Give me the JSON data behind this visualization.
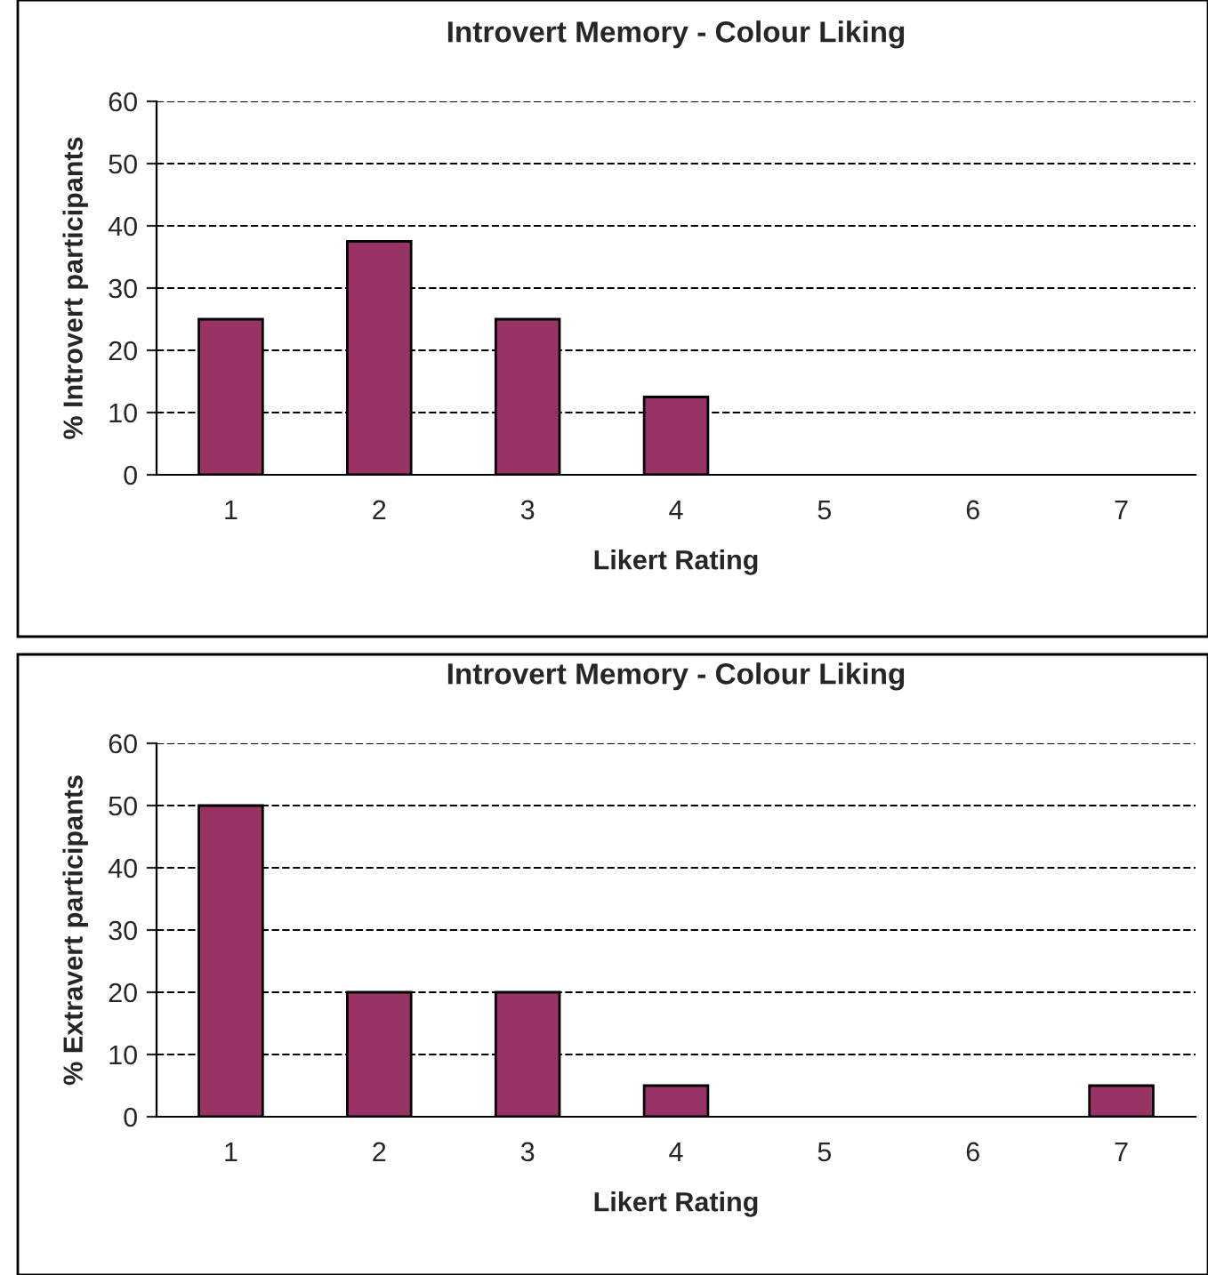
{
  "chart_data": [
    {
      "type": "bar",
      "title": "Introvert Memory - Colour Liking",
      "xlabel": "Likert Rating",
      "ylabel": "% Introvert participants",
      "categories": [
        "1",
        "2",
        "3",
        "4",
        "5",
        "6",
        "7"
      ],
      "series": [
        {
          "color": "#993366",
          "values": [
            25,
            37.5,
            25,
            12.5,
            0,
            0,
            0
          ]
        }
      ],
      "ylim": [
        0,
        60
      ],
      "yticks": [
        0,
        10,
        20,
        30,
        40,
        50,
        60
      ],
      "grid": "y",
      "legend": false
    },
    {
      "type": "bar",
      "title": "Introvert Memory - Colour Liking",
      "xlabel": "Likert Rating",
      "ylabel": "% Extravert participants",
      "categories": [
        "1",
        "2",
        "3",
        "4",
        "5",
        "6",
        "7"
      ],
      "series": [
        {
          "color": "#993366",
          "values": [
            50,
            20,
            20,
            5,
            0,
            0,
            5
          ]
        }
      ],
      "ylim": [
        0,
        60
      ],
      "yticks": [
        0,
        10,
        20,
        30,
        40,
        50,
        60
      ],
      "grid": "y",
      "legend": false
    }
  ]
}
